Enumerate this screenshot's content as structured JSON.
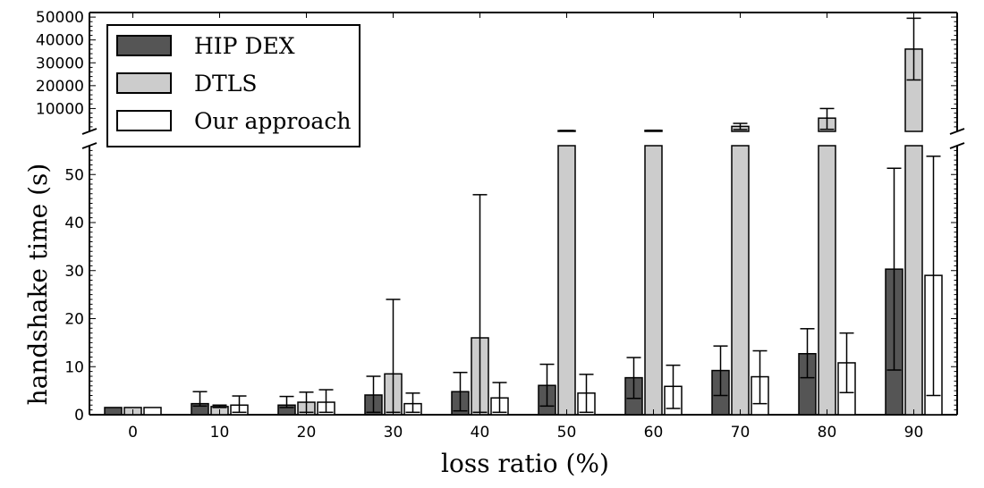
{
  "chart_data": {
    "type": "bar",
    "title": "",
    "xlabel": "loss ratio (%)",
    "ylabel": "handshake time (s)",
    "categories": [
      "0",
      "10",
      "20",
      "30",
      "40",
      "50",
      "60",
      "70",
      "80",
      "90"
    ],
    "broken_y_axis": true,
    "ylim_lower": [
      0,
      56
    ],
    "ylim_upper": [
      0,
      52000
    ],
    "yticks_lower": [
      "0",
      "10",
      "20",
      "30",
      "40",
      "50"
    ],
    "yticks_upper": [
      "10000",
      "20000",
      "30000",
      "40000",
      "50000"
    ],
    "legend_position": "top-left",
    "grid": false,
    "series": [
      {
        "name": "HIP DEX",
        "color": "#555555",
        "values": [
          1.5,
          2.3,
          2.0,
          4.1,
          4.8,
          6.1,
          7.7,
          9.2,
          12.7,
          30.3
        ],
        "error_low": [
          1.5,
          1.8,
          1.5,
          0.5,
          0.8,
          1.8,
          3.4,
          4.0,
          7.7,
          9.3
        ],
        "error_high": [
          1.5,
          4.8,
          3.8,
          8.0,
          8.8,
          10.5,
          11.9,
          14.3,
          17.9,
          51.3
        ]
      },
      {
        "name": "DTLS",
        "color": "#cccccc",
        "values": [
          1.5,
          1.7,
          2.6,
          8.5,
          16.0,
          350,
          450,
          2200,
          5800,
          36000
        ],
        "error_low": [
          1.5,
          1.5,
          0.5,
          0.5,
          0.5,
          300,
          350,
          800,
          900,
          22500
        ],
        "error_high": [
          1.5,
          2.0,
          4.7,
          24.0,
          45.8,
          400,
          500,
          3500,
          10000,
          49500
        ]
      },
      {
        "name": "Our approach",
        "color": "#ffffff",
        "values": [
          1.5,
          2.0,
          2.6,
          2.3,
          3.5,
          4.5,
          5.9,
          7.9,
          10.8,
          29.0
        ],
        "error_low": [
          1.5,
          0.5,
          0.5,
          0.5,
          0.5,
          0.5,
          1.3,
          2.3,
          4.6,
          4.0
        ],
        "error_high": [
          1.5,
          3.9,
          5.2,
          4.5,
          6.7,
          8.4,
          10.3,
          13.3,
          17.0,
          53.8
        ]
      }
    ]
  }
}
